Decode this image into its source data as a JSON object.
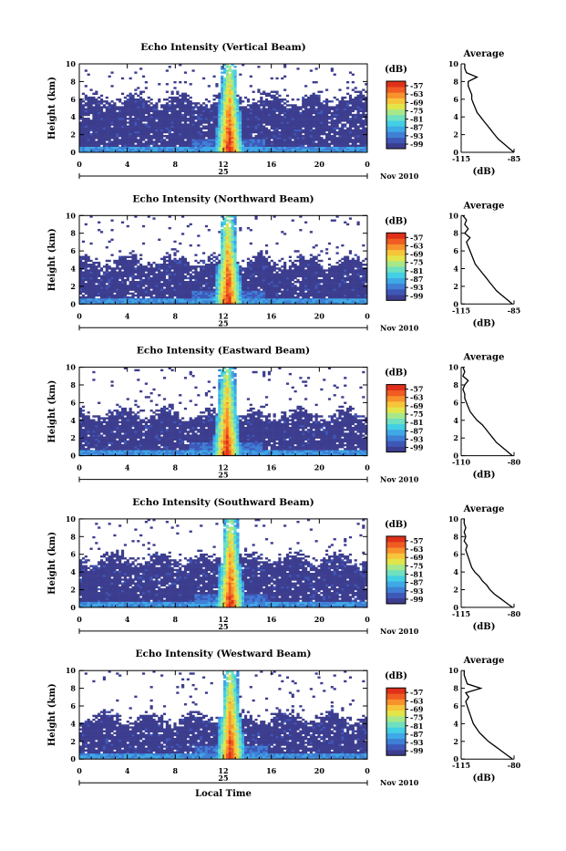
{
  "colors": {
    "scale": [
      "#3d3d8f",
      "#3e58b8",
      "#3f7fd6",
      "#3fa8e6",
      "#43cfe4",
      "#6fe0c0",
      "#a7e88a",
      "#e2e54a",
      "#f6c53a",
      "#f7922d",
      "#f05c22",
      "#e0301a"
    ],
    "line": "#000000",
    "background": "#ffffff"
  },
  "chart_data": [
    {
      "type": "heatmap",
      "title": "Echo Intensity (Vertical Beam)",
      "ylabel": "Height (km)",
      "ylim": [
        0,
        10
      ],
      "yticks": [
        "0",
        "2",
        "4",
        "6",
        "8",
        "10"
      ],
      "xlim": [
        0,
        24
      ],
      "xticks": [
        "0",
        "4",
        "8",
        "12",
        "16",
        "20",
        "0"
      ],
      "date_tick": "25",
      "date_label": "Nov 2010",
      "colorbar": {
        "unit": "(dB)",
        "ticks": [
          "-57",
          "-63",
          "-69",
          "-75",
          "-81",
          "-87",
          "-93",
          "-99"
        ]
      },
      "profile": {
        "title": "Average",
        "xlabel": "(dB)",
        "xticks": [
          "-115",
          "-85"
        ],
        "xlim": [
          -115,
          -85
        ],
        "ylim": [
          0,
          10
        ],
        "heights": [
          0,
          0.5,
          1,
          1.5,
          2,
          2.5,
          3,
          3.5,
          4,
          4.5,
          5,
          5.5,
          6,
          6.5,
          7,
          7.5,
          8,
          8.5,
          9,
          9.5,
          10
        ],
        "values": [
          -85,
          -88,
          -91,
          -94,
          -96,
          -98,
          -100,
          -102,
          -104,
          -106,
          -107,
          -108,
          -109,
          -109,
          -110,
          -111,
          -111,
          -106,
          -112,
          -113,
          -113
        ]
      },
      "heat": {
        "top_km": 6.3,
        "core_center_h": 12.5,
        "core_top_km": 6.0
      }
    },
    {
      "type": "heatmap",
      "title": "Echo Intensity (Northward Beam)",
      "ylabel": "Height (km)",
      "ylim": [
        0,
        10
      ],
      "yticks": [
        "0",
        "2",
        "4",
        "6",
        "8",
        "10"
      ],
      "xlim": [
        0,
        24
      ],
      "xticks": [
        "0",
        "4",
        "8",
        "12",
        "16",
        "20",
        "0"
      ],
      "date_tick": "25",
      "date_label": "Nov 2010",
      "colorbar": {
        "unit": "(dB)",
        "ticks": [
          "-57",
          "-63",
          "-69",
          "-75",
          "-81",
          "-87",
          "-93",
          "-99"
        ]
      },
      "profile": {
        "title": "Average",
        "xlabel": "(dB)",
        "xticks": [
          "-115",
          "-85"
        ],
        "xlim": [
          -115,
          -85
        ],
        "ylim": [
          0,
          10
        ],
        "heights": [
          0,
          0.5,
          1,
          1.5,
          2,
          2.5,
          3,
          3.5,
          4,
          4.5,
          5,
          5.5,
          6,
          6.5,
          7,
          7.5,
          8,
          8.5,
          9,
          9.5,
          10
        ],
        "values": [
          -86,
          -89,
          -92,
          -95,
          -97,
          -99,
          -101,
          -103,
          -105,
          -107,
          -108,
          -109,
          -110,
          -111,
          -112,
          -110,
          -113,
          -111,
          -113,
          -112,
          -114
        ]
      },
      "heat": {
        "top_km": 5.2,
        "core_center_h": 12.4,
        "core_top_km": 4.5
      }
    },
    {
      "type": "heatmap",
      "title": "Echo Intensity (Eastward Beam)",
      "ylabel": "Height (km)",
      "ylim": [
        0,
        10
      ],
      "yticks": [
        "0",
        "2",
        "4",
        "6",
        "8",
        "10"
      ],
      "xlim": [
        0,
        24
      ],
      "xticks": [
        "0",
        "4",
        "8",
        "12",
        "16",
        "20",
        "0"
      ],
      "date_tick": "25",
      "date_label": "Nov 2010",
      "colorbar": {
        "unit": "(dB)",
        "ticks": [
          "-57",
          "-63",
          "-69",
          "-75",
          "-81",
          "-87",
          "-93",
          "-99"
        ]
      },
      "profile": {
        "title": "Average",
        "xlabel": "(dB)",
        "xticks": [
          "-110",
          "-80"
        ],
        "xlim": [
          -110,
          -80
        ],
        "ylim": [
          0,
          10
        ],
        "heights": [
          0,
          0.5,
          1,
          1.5,
          2,
          2.5,
          3,
          3.5,
          4,
          4.5,
          5,
          5.5,
          6,
          6.5,
          7,
          7.5,
          8,
          8.5,
          9,
          9.5,
          10
        ],
        "values": [
          -81,
          -84,
          -87,
          -90,
          -92,
          -94,
          -96,
          -98,
          -101,
          -103,
          -105,
          -106,
          -107,
          -108,
          -108,
          -109,
          -108,
          -106,
          -109,
          -108,
          -109
        ]
      },
      "heat": {
        "top_km": 5.0,
        "core_center_h": 12.3,
        "core_top_km": 4.5
      }
    },
    {
      "type": "heatmap",
      "title": "Echo Intensity (Southward Beam)",
      "ylabel": "Height (km)",
      "ylim": [
        0,
        10
      ],
      "yticks": [
        "0",
        "2",
        "4",
        "6",
        "8",
        "10"
      ],
      "xlim": [
        0,
        24
      ],
      "xticks": [
        "0",
        "4",
        "8",
        "12",
        "16",
        "20",
        "0"
      ],
      "date_tick": "25",
      "date_label": "Nov 2010",
      "colorbar": {
        "unit": "(dB)",
        "ticks": [
          "-57",
          "-63",
          "-69",
          "-75",
          "-81",
          "-87",
          "-93",
          "-99"
        ]
      },
      "profile": {
        "title": "Average",
        "xlabel": "(dB)",
        "xticks": [
          "-115",
          "-80"
        ],
        "xlim": [
          -115,
          -80
        ],
        "ylim": [
          0,
          10
        ],
        "heights": [
          0,
          0.5,
          1,
          1.5,
          2,
          2.5,
          3,
          3.5,
          4,
          4.5,
          5,
          5.5,
          6,
          6.5,
          7,
          7.5,
          8,
          8.5,
          9,
          9.5,
          10
        ],
        "values": [
          -81,
          -85,
          -89,
          -93,
          -96,
          -98,
          -101,
          -103,
          -106,
          -108,
          -109,
          -110,
          -111,
          -112,
          -111,
          -113,
          -112,
          -113,
          -112,
          -113,
          -113
        ]
      },
      "heat": {
        "top_km": 5.8,
        "core_center_h": 12.6,
        "core_top_km": 5.0
      }
    },
    {
      "type": "heatmap",
      "title": "Echo Intensity (Westward Beam)",
      "ylabel": "Height (km)",
      "ylim": [
        0,
        10
      ],
      "yticks": [
        "0",
        "2",
        "4",
        "6",
        "8",
        "10"
      ],
      "xlim": [
        0,
        24
      ],
      "xticks": [
        "0",
        "4",
        "8",
        "12",
        "16",
        "20",
        "0"
      ],
      "date_tick": "25",
      "date_label": "Nov 2010",
      "xlabel": "Local Time",
      "colorbar": {
        "unit": "(dB)",
        "ticks": [
          "-57",
          "-63",
          "-69",
          "-75",
          "-81",
          "-87",
          "-93",
          "-99"
        ]
      },
      "profile": {
        "title": "Average",
        "xlabel": "(dB)",
        "xticks": [
          "-115",
          "-80"
        ],
        "xlim": [
          -115,
          -80
        ],
        "ylim": [
          0,
          10
        ],
        "heights": [
          0,
          0.5,
          1,
          1.5,
          2,
          2.5,
          3,
          3.5,
          4,
          4.5,
          5,
          5.5,
          6,
          6.5,
          7,
          7.5,
          8,
          8.5,
          9,
          9.5,
          10
        ],
        "values": [
          -81,
          -85,
          -89,
          -93,
          -97,
          -100,
          -103,
          -105,
          -107,
          -108,
          -109,
          -110,
          -111,
          -112,
          -110,
          -112,
          -102,
          -111,
          -112,
          -113,
          -113
        ]
      },
      "heat": {
        "top_km": 5.0,
        "core_center_h": 12.6,
        "core_top_km": 4.8
      }
    }
  ]
}
